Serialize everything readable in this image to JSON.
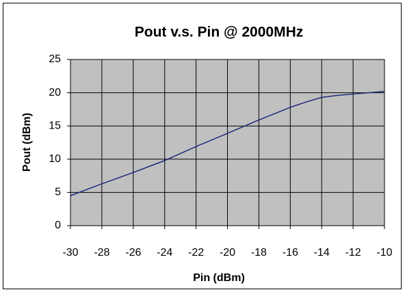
{
  "chart_data": {
    "type": "line",
    "title": "Pout v.s. Pin @ 2000MHz",
    "x_label": "Pin (dBm)",
    "y_label": "Pout (dBm)",
    "x": [
      -30,
      -28,
      -26,
      -24,
      -22,
      -20,
      -18,
      -16,
      -15,
      -14,
      -13,
      -12,
      -11,
      -10
    ],
    "series": [
      {
        "name": "Pout",
        "color": "#1f2a7a",
        "values": [
          4.5,
          6.3,
          8.0,
          9.8,
          11.9,
          13.9,
          15.9,
          17.8,
          18.6,
          19.3,
          19.6,
          19.8,
          20.0,
          20.2
        ]
      }
    ],
    "xlim": [
      -30,
      -10
    ],
    "xticks": [
      -30,
      -28,
      -26,
      -24,
      -22,
      -20,
      -18,
      -16,
      -14,
      -12,
      -10
    ],
    "ylim": [
      0,
      25
    ],
    "yticks": [
      0,
      5,
      10,
      15,
      20,
      25
    ],
    "grid": true,
    "plot_background": "#c0c0c0"
  }
}
